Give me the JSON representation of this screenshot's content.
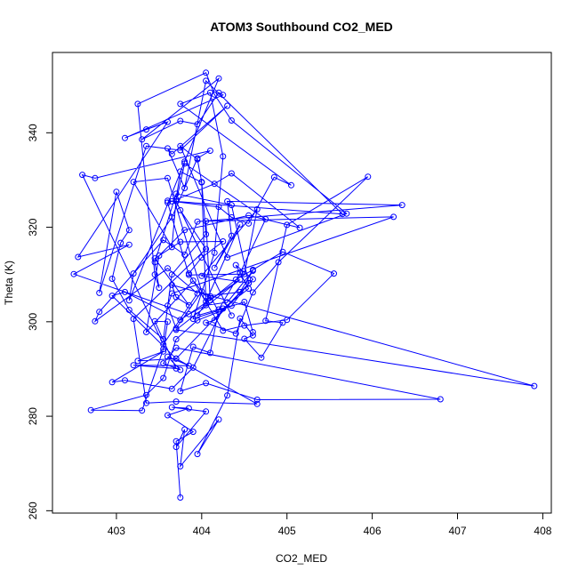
{
  "chart_data": {
    "type": "line",
    "title": "ATOM3 Southbound CO2_MED",
    "xlabel": "CO2_MED",
    "ylabel": "Theta (K)",
    "xlim": [
      402.25,
      408.1
    ],
    "ylim": [
      259.5,
      357
    ],
    "xticks": [
      403,
      404,
      405,
      406,
      407,
      408
    ],
    "yticks": [
      260,
      280,
      300,
      320,
      340
    ],
    "grid": false,
    "legend": "none",
    "series_color": "#0000ff",
    "marker": "open-circle",
    "series": [
      {
        "x": [
          403.75,
          403.7,
          403.9,
          403.6,
          403.85,
          403.65,
          404.05,
          403.7,
          403.8,
          403.75,
          404.2,
          403.95,
          404.3,
          404.45,
          404.6,
          404.5,
          404.7,
          404.95,
          404.75,
          405.0,
          405.95,
          404.9,
          404.6,
          404.4,
          404.05,
          404.15,
          404.6,
          404.4,
          404.55,
          404.25,
          403.9,
          403.65,
          403.1,
          402.95,
          403.55,
          403.25,
          403.7,
          404.65,
          403.7,
          403.35,
          403.2,
          404.05,
          403.75,
          404.35,
          403.7,
          403.8,
          404.75,
          404.45,
          404.2,
          404.1,
          403.9,
          403.75,
          404.05,
          404.65,
          406.8,
          403.7,
          403.55,
          403.75,
          403.6,
          403.85,
          403.2,
          403.7,
          403.45,
          403.6,
          403.55,
          403.3,
          402.7,
          403.35,
          403.55,
          403.7,
          403.95,
          404.2,
          404.1,
          403.95,
          404.35,
          404.55,
          403.7,
          402.95,
          403.1,
          403.75,
          404.45,
          403.7,
          407.9,
          403.65,
          403.7,
          403.85,
          403.45,
          403.75,
          404.25,
          404.0,
          403.85,
          404.25,
          404.5,
          405.0,
          405.55,
          404.95,
          404.6,
          404.4,
          404.1,
          404.05,
          406.25,
          403.65,
          403.6,
          403.7,
          404.0,
          403.6,
          403.2,
          403.65,
          403.7,
          403.75,
          404.0,
          404.05,
          404.45,
          404.15,
          404.35,
          404.3,
          406.35,
          403.95,
          403.8,
          403.55,
          402.8,
          402.75,
          403.6,
          403.95,
          403.55,
          402.6,
          402.75,
          404.1,
          403.95,
          403.65,
          403.2,
          403.15,
          403.8,
          404.2,
          403.3,
          403.75,
          403.95,
          404.2,
          404.25,
          403.1,
          403.35,
          403.6,
          402.55,
          403.15,
          402.5,
          403.85,
          404.05,
          404.3,
          404.6,
          404.45,
          404.05,
          403.9,
          403.35,
          403.5,
          403.8,
          404.55,
          405.15,
          404.35,
          404.15,
          403.65,
          403.6,
          403.85,
          404.5,
          404.65,
          404.0,
          404.55,
          404.35,
          403.7,
          403.45,
          403.5,
          403.45,
          403.25,
          404.05,
          404.15,
          404.35,
          405.7,
          404.3,
          403.75,
          403.95,
          404.0,
          404.05,
          403.65,
          403.55,
          403.15,
          402.95,
          403.05,
          403.15,
          403.0,
          402.8,
          403.35,
          403.75,
          404.3,
          403.65,
          403.6,
          403.8,
          404.05,
          405.65,
          403.6,
          404.2,
          404.35,
          404.55,
          404.85,
          405.05,
          403.75,
          404.1,
          404.25,
          404.15,
          403.9,
          404.5,
          404.6
        ],
        "y": [
          262.8,
          274.7,
          276.7,
          280.2,
          281.7,
          281.9,
          281.0,
          273.5,
          277.2,
          269.4,
          279.3,
          272.0,
          284.4,
          300.7,
          297.1,
          296.4,
          292.4,
          299.8,
          300.2,
          320.5,
          330.7,
          312.6,
          306.2,
          297.5,
          299.8,
          300.3,
          309.0,
          312.0,
          307.0,
          302.8,
          290.3,
          285.8,
          287.6,
          287.2,
          293.7,
          291.7,
          292.2,
          282.6,
          283.1,
          282.8,
          300.6,
          315.4,
          323.6,
          301.3,
          325.5,
          333.5,
          321.7,
          310.3,
          302.6,
          293.4,
          294.7,
          285.3,
          287.0,
          283.5,
          283.6,
          294.5,
          291.2,
          289.8,
          292.6,
          290.7,
          290.8,
          290.1,
          300.1,
          300.0,
          294.2,
          281.2,
          281.3,
          284.5,
          288.1,
          296.3,
          300.3,
          302.1,
          305.4,
          301.3,
          303.4,
          308.1,
          292.2,
          305.5,
          306.3,
          300.4,
          308.9,
          298.3,
          286.4,
          307.8,
          305.2,
          303.5,
          313.4,
          316.9,
          317.0,
          313.6,
          310.2,
          298.1,
          299.2,
          300.4,
          310.2,
          314.8,
          311.0,
          308.9,
          304.5,
          321.3,
          322.2,
          306.0,
          303.4,
          298.6,
          306.4,
          330.4,
          329.6,
          315.8,
          325.9,
          331.8,
          329.5,
          304.3,
          320.6,
          311.4,
          318.2,
          325.5,
          324.7,
          321.2,
          314.2,
          317.3,
          302.1,
          300.1,
          311.3,
          306.0,
          295.2,
          331.1,
          330.4,
          336.2,
          334.6,
          322.1,
          310.2,
          304.5,
          333.9,
          351.5,
          338.6,
          342.5,
          341.8,
          348.5,
          348.0,
          338.9,
          340.7,
          342.3,
          313.7,
          316.3,
          310.1,
          301.6,
          303.5,
          304.1,
          310.8,
          306.3,
          305.4,
          308.7,
          297.8,
          314.0,
          319.4,
          322.5,
          319.9,
          331.4,
          329.2,
          325.5,
          325.2,
          309.9,
          310.1,
          323.8,
          309.7,
          308.2,
          324.7,
          327.1,
          312.6,
          307.2,
          310.0,
          346.1,
          352.7,
          348.1,
          342.6,
          322.9,
          313.6,
          337.2,
          334.4,
          329.6,
          318.5,
          310.0,
          296.3,
          302.5,
          309.1,
          316.7,
          319.4,
          327.5,
          306.1,
          337.2,
          336.3,
          345.7,
          335.5,
          336.7,
          328.3,
          351.0,
          322.8,
          325.6,
          324.3,
          322.1,
          320.8,
          330.6,
          328.9,
          346.1,
          348.5,
          335.0,
          314.6,
          300.6,
          304.2,
          297.8
        ]
      }
    ]
  }
}
